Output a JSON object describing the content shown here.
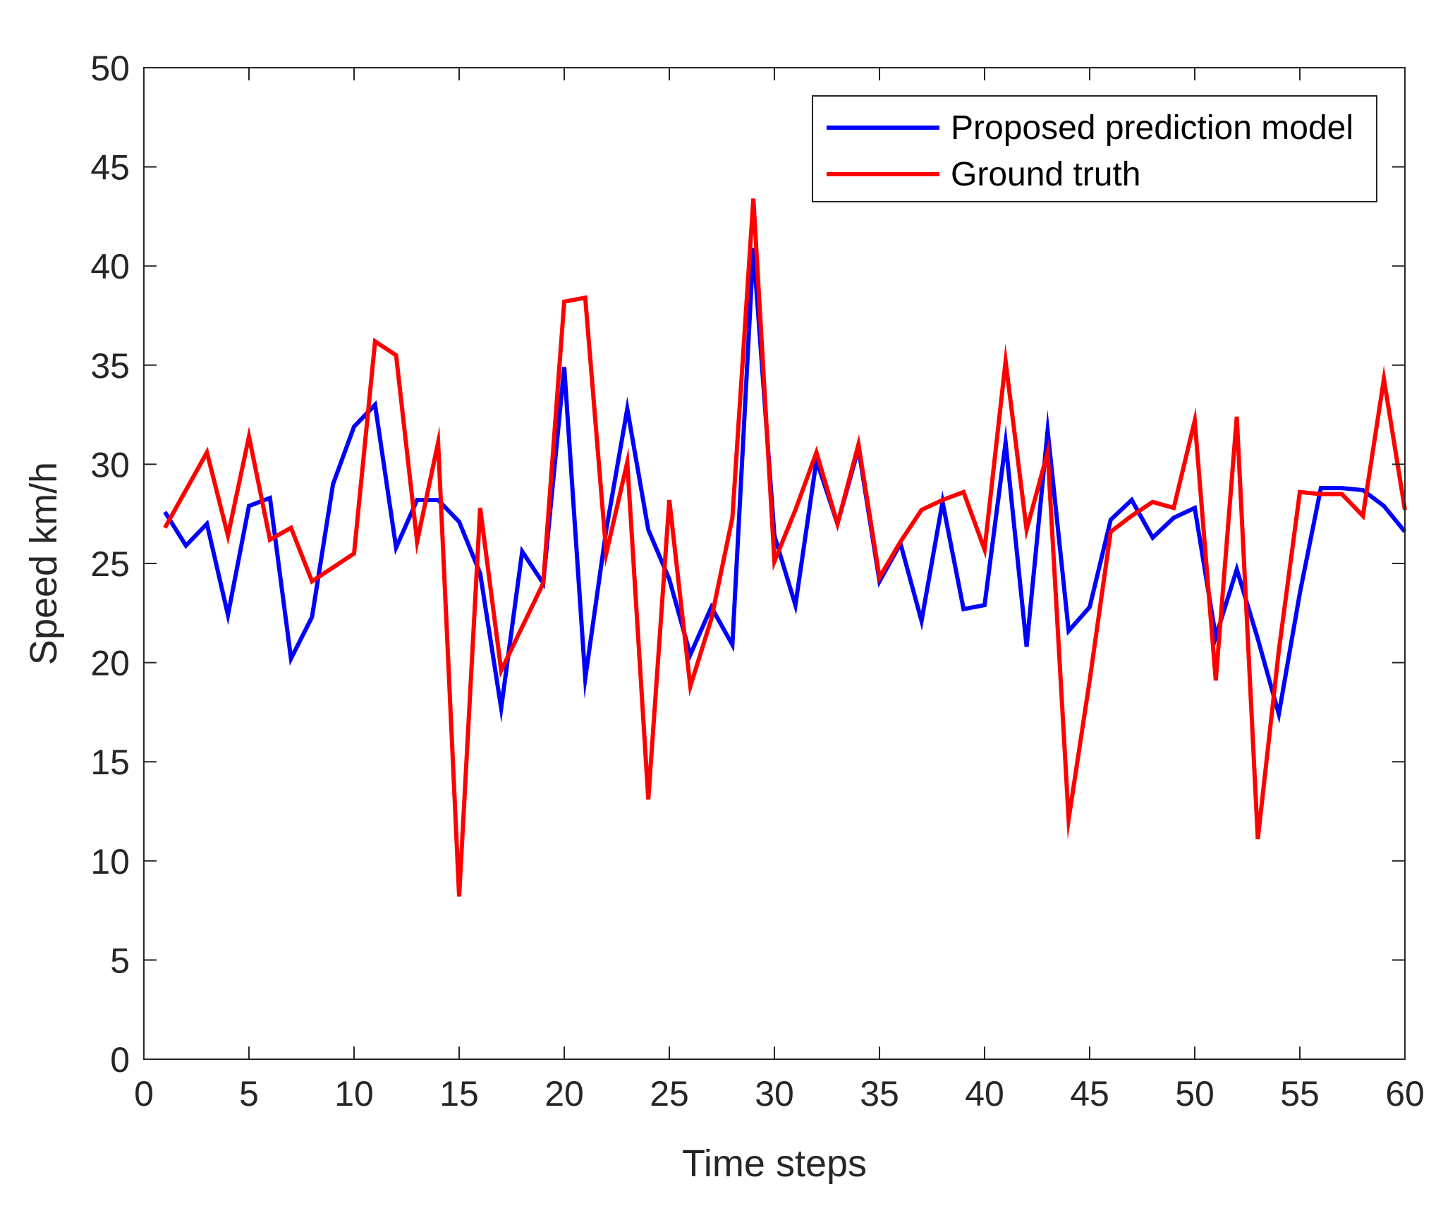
{
  "chart_data": {
    "type": "line",
    "title": "",
    "xlabel": "Time steps",
    "ylabel": "Speed km/h",
    "xlim": [
      0,
      60
    ],
    "ylim": [
      0,
      50
    ],
    "xticks": [
      0,
      5,
      10,
      15,
      20,
      25,
      30,
      35,
      40,
      45,
      50,
      55,
      60
    ],
    "yticks": [
      0,
      5,
      10,
      15,
      20,
      25,
      30,
      35,
      40,
      45,
      50
    ],
    "grid": false,
    "legend_position": "top-right",
    "x": [
      1,
      2,
      3,
      4,
      5,
      6,
      7,
      8,
      9,
      10,
      11,
      12,
      13,
      14,
      15,
      16,
      17,
      18,
      19,
      20,
      21,
      22,
      23,
      24,
      25,
      26,
      27,
      28,
      29,
      30,
      31,
      32,
      33,
      34,
      35,
      36,
      37,
      38,
      39,
      40,
      41,
      42,
      43,
      44,
      45,
      46,
      47,
      48,
      49,
      50,
      51,
      52,
      53,
      54,
      55,
      56,
      57,
      58,
      59,
      60
    ],
    "series": [
      {
        "name": "Proposed prediction model",
        "color": "#0000ff",
        "values": [
          27.6,
          25.9,
          27.0,
          22.4,
          27.9,
          28.3,
          20.2,
          22.3,
          29.0,
          31.9,
          33.0,
          25.8,
          28.2,
          28.2,
          27.1,
          24.5,
          17.7,
          25.6,
          24.0,
          34.9,
          19.2,
          26.7,
          32.8,
          26.7,
          24.2,
          20.4,
          22.8,
          20.9,
          40.9,
          26.4,
          22.9,
          30.2,
          27.0,
          30.8,
          24.1,
          26.0,
          22.1,
          28.1,
          22.7,
          22.9,
          31.1,
          20.8,
          31.7,
          21.6,
          22.8,
          27.2,
          28.2,
          26.3,
          27.3,
          27.8,
          21.3,
          24.7,
          21.2,
          17.4,
          23.5,
          28.8,
          28.8,
          28.7,
          27.9,
          26.6
        ]
      },
      {
        "name": "Ground truth",
        "color": "#ff0000",
        "values": [
          26.8,
          28.7,
          30.6,
          26.4,
          31.4,
          26.2,
          26.8,
          24.1,
          24.8,
          25.5,
          36.2,
          35.5,
          26.1,
          31.1,
          8.2,
          27.8,
          19.6,
          21.8,
          24.0,
          38.2,
          38.4,
          25.5,
          30.1,
          13.1,
          28.2,
          18.8,
          22.2,
          27.3,
          43.4,
          25.1,
          27.7,
          30.6,
          27.0,
          31.0,
          24.3,
          26.1,
          27.7,
          28.2,
          28.6,
          25.7,
          35.2,
          26.7,
          30.6,
          12.1,
          19.1,
          26.6,
          27.4,
          28.1,
          27.8,
          32.2,
          19.1,
          32.4,
          11.1,
          20.6,
          28.6,
          28.5,
          28.5,
          27.4,
          34.3,
          27.7
        ]
      }
    ]
  }
}
